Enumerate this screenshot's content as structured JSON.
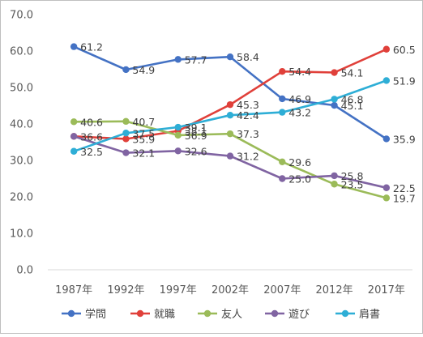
{
  "chart_data": {
    "type": "line",
    "categories": [
      "1987年",
      "1992年",
      "1997年",
      "2002年",
      "2007年",
      "2012年",
      "2017年"
    ],
    "ylim": [
      0,
      70
    ],
    "yticks": [
      "0.0",
      "10.0",
      "20.0",
      "30.0",
      "40.0",
      "50.0",
      "60.0",
      "70.0"
    ],
    "grid": false,
    "legend_position": "bottom",
    "series": [
      {
        "name": "学問",
        "color": "#4472C4",
        "values": [
          61.2,
          54.9,
          57.7,
          58.4,
          46.9,
          45.1,
          35.9
        ],
        "labels": [
          "61.2",
          "54.9",
          "57.7",
          "58.4",
          "46.9",
          "45.1",
          "35.9"
        ]
      },
      {
        "name": "就職",
        "color": "#E0403A",
        "values": [
          36.6,
          35.9,
          38.1,
          45.3,
          54.4,
          54.1,
          60.5
        ],
        "labels": [
          "36.6",
          "35.9",
          "38.1",
          "45.3",
          "54.4",
          "54.1",
          "60.5"
        ]
      },
      {
        "name": "友人",
        "color": "#9BBB59",
        "values": [
          40.6,
          40.7,
          36.9,
          37.3,
          29.6,
          23.5,
          19.7
        ],
        "labels": [
          "40.6",
          "40.7",
          "36.9",
          "37.3",
          "29.6",
          "23.5",
          "19.7"
        ]
      },
      {
        "name": "遊び",
        "color": "#8064A2",
        "values": [
          36.6,
          32.1,
          32.6,
          31.2,
          25.0,
          25.8,
          22.5
        ],
        "labels": [
          "",
          "32.1",
          "32.6",
          "31.2",
          "25.0",
          "25.8",
          "22.5"
        ]
      },
      {
        "name": "肩書",
        "color": "#2EAED6",
        "values": [
          32.5,
          37.5,
          39.1,
          42.4,
          43.2,
          46.8,
          51.9
        ],
        "labels": [
          "32.5",
          "37.5",
          "39.1",
          "42.4",
          "43.2",
          "46.8",
          "51.9"
        ]
      }
    ]
  }
}
